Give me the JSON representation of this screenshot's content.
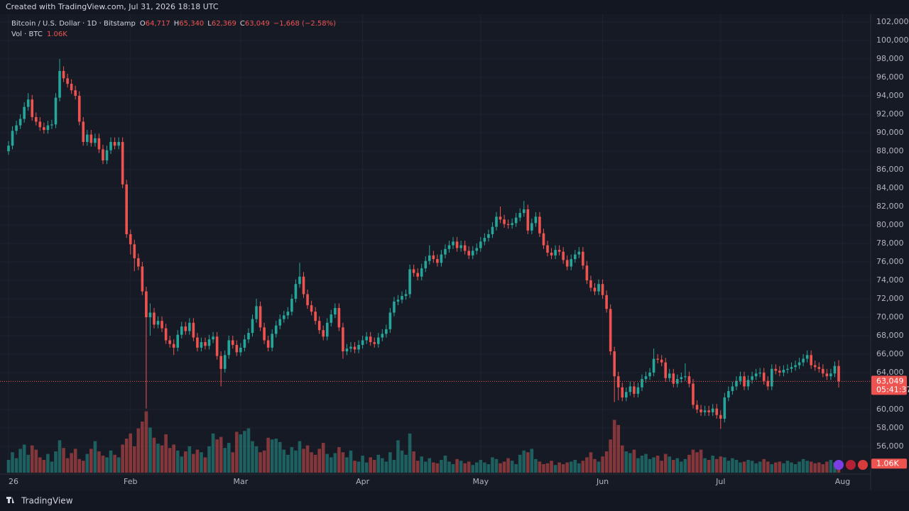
{
  "header": {
    "created": "Created with TradingView.com, Jul 31, 2026 18:18 UTC"
  },
  "footer": {
    "brand": "TradingView"
  },
  "legend": {
    "symbol": "Bitcoin / U.S. Dollar · 1D · Bitstamp",
    "ohlc": [
      {
        "key": "O",
        "value": "64,717"
      },
      {
        "key": "H",
        "value": "65,340"
      },
      {
        "key": "L",
        "value": "62,369"
      },
      {
        "key": "C",
        "value": "63,049"
      }
    ],
    "change": "−1,668 (−2.58%)",
    "volume_title": "Vol · BTC",
    "volume_value": "1.06K",
    "countdown": "05:41:37"
  },
  "chart_data": {
    "type": "candlestick",
    "up_color": "#26a69a",
    "down_color": "#ef5350",
    "grid": true,
    "xlim": [
      0,
      219
    ],
    "xticks": [
      {
        "value": 0,
        "label": "26"
      },
      {
        "value": 31,
        "label": "Feb"
      },
      {
        "value": 59,
        "label": "Mar"
      },
      {
        "value": 90,
        "label": "Apr"
      },
      {
        "value": 120,
        "label": "May"
      },
      {
        "value": 151,
        "label": "Jun"
      },
      {
        "value": 181,
        "label": "Jul"
      },
      {
        "value": 212,
        "label": "Aug"
      }
    ],
    "ylim": [
      53150,
      102850
    ],
    "yticks": [
      {
        "value": 102000,
        "label": "102,000"
      },
      {
        "value": 100000,
        "label": "100,000"
      },
      {
        "value": 98000,
        "label": "98,000"
      },
      {
        "value": 96000,
        "label": "96,000"
      },
      {
        "value": 94000,
        "label": "94,000"
      },
      {
        "value": 92000,
        "label": "92,000"
      },
      {
        "value": 90000,
        "label": "90,000"
      },
      {
        "value": 88000,
        "label": "88,000"
      },
      {
        "value": 86000,
        "label": "86,000"
      },
      {
        "value": 84000,
        "label": "84,000"
      },
      {
        "value": 82000,
        "label": "82,000"
      },
      {
        "value": 80000,
        "label": "80,000"
      },
      {
        "value": 78000,
        "label": "78,000"
      },
      {
        "value": 76000,
        "label": "76,000"
      },
      {
        "value": 74000,
        "label": "74,000"
      },
      {
        "value": 72000,
        "label": "72,000"
      },
      {
        "value": 70000,
        "label": "70,000"
      },
      {
        "value": 68000,
        "label": "68,000"
      },
      {
        "value": 66000,
        "label": "66,000"
      },
      {
        "value": 64000,
        "label": "64,000"
      },
      {
        "value": 60000,
        "label": "60,000"
      },
      {
        "value": 58000,
        "label": "58,000"
      },
      {
        "value": 56000,
        "label": "56,000"
      }
    ],
    "vlim": [
      0,
      12000
    ],
    "open": [
      88000,
      88600,
      90200,
      90800,
      91500,
      92800,
      93600,
      91700,
      91200,
      90600,
      90300,
      90800,
      90900,
      93800,
      96700,
      95900,
      95300,
      94600,
      94000,
      91200,
      89000,
      89800,
      88900,
      89400,
      88200,
      87000,
      88100,
      89000,
      88600,
      89000,
      84400,
      79000,
      77900,
      76400,
      75500,
      72800,
      70000,
      70500,
      69200,
      69600,
      68800,
      67500,
      67100,
      66700,
      68100,
      69000,
      68500,
      69400,
      67800,
      66700,
      67300,
      66900,
      67600,
      67900,
      65800,
      64400,
      65900,
      67500,
      67000,
      66200,
      66700,
      67600,
      68300,
      69800,
      71200,
      68900,
      67500,
      66700,
      68200,
      69100,
      69800,
      70200,
      70600,
      72000,
      73600,
      74400,
      72500,
      71300,
      70600,
      69600,
      68600,
      67900,
      69400,
      70300,
      71000,
      68900,
      66300,
      66600,
      66800,
      66500,
      67000,
      67500,
      67900,
      67300,
      67100,
      67800,
      68200,
      68700,
      70500,
      71700,
      71900,
      72300,
      72500,
      75200,
      74800,
      74400,
      75300,
      76100,
      76700,
      76300,
      75900,
      76800,
      77400,
      77800,
      78200,
      77500,
      77800,
      77200,
      76700,
      77200,
      77500,
      78200,
      78600,
      79000,
      79800,
      80900,
      80600,
      80100,
      80000,
      80200,
      80800,
      81300,
      81700,
      79400,
      80200,
      80900,
      79100,
      77800,
      77000,
      76700,
      77300,
      77100,
      76200,
      75500,
      76300,
      76800,
      77100,
      75600,
      74000,
      73200,
      72800,
      73600,
      72400,
      70900,
      66300,
      63600,
      62400,
      61300,
      61900,
      62500,
      61700,
      62400,
      63300,
      63600,
      64000,
      65500,
      65400,
      65100,
      63400,
      63900,
      62800,
      63300,
      63500,
      63600,
      62800,
      60500,
      60000,
      59700,
      59900,
      59700,
      60100,
      59400,
      59000,
      61300,
      62000,
      62500,
      63100,
      63600,
      62500,
      63200,
      63600,
      63900,
      64000,
      63100,
      62500,
      64400,
      64200,
      64000,
      64300,
      64400,
      64600,
      64800,
      65100,
      65500,
      65900,
      64800,
      64600,
      64400,
      63900,
      63600,
      63900,
      64717
    ],
    "high": [
      89100,
      90700,
      91300,
      92000,
      93300,
      94300,
      94100,
      92200,
      91700,
      91100,
      91300,
      91400,
      94300,
      98000,
      97200,
      96400,
      95800,
      95100,
      94500,
      91700,
      90300,
      90300,
      89900,
      89900,
      88700,
      88600,
      89500,
      89500,
      89500,
      89500,
      84900,
      79500,
      78400,
      76900,
      76000,
      73300,
      71500,
      71000,
      70100,
      70100,
      69300,
      68000,
      67600,
      68600,
      69500,
      69500,
      69900,
      69900,
      68300,
      67800,
      67800,
      68100,
      68400,
      68400,
      66300,
      66400,
      68000,
      68000,
      67500,
      67200,
      68100,
      68800,
      70300,
      72000,
      71700,
      69400,
      68000,
      68700,
      69600,
      70300,
      70700,
      71100,
      72500,
      74100,
      75900,
      74900,
      73000,
      71800,
      71100,
      70100,
      69100,
      69900,
      70800,
      71500,
      71500,
      69400,
      67100,
      67300,
      67300,
      67500,
      68000,
      68400,
      68400,
      67800,
      68300,
      68700,
      69200,
      71000,
      72200,
      72400,
      72800,
      73000,
      75700,
      75700,
      75300,
      75800,
      76600,
      77800,
      77200,
      76800,
      77300,
      77900,
      78300,
      78700,
      78700,
      78300,
      78300,
      77700,
      77700,
      78000,
      78700,
      79100,
      79500,
      80300,
      81400,
      82000,
      81100,
      80600,
      80700,
      81300,
      81800,
      82600,
      82200,
      80700,
      81400,
      81400,
      79600,
      78300,
      77500,
      77800,
      77800,
      77600,
      76700,
      76800,
      77300,
      77600,
      77600,
      76100,
      74500,
      73700,
      74100,
      74100,
      72900,
      71400,
      66800,
      64100,
      62900,
      62400,
      63000,
      63000,
      62900,
      63800,
      64100,
      64500,
      66600,
      66000,
      65900,
      65600,
      64400,
      64400,
      63800,
      64000,
      65000,
      64100,
      63300,
      61000,
      60500,
      60400,
      60400,
      60600,
      60600,
      59900,
      61800,
      62500,
      63000,
      63600,
      64100,
      64100,
      63700,
      64100,
      64400,
      64500,
      64500,
      63600,
      64900,
      64900,
      64700,
      64800,
      64900,
      65100,
      65300,
      65600,
      66000,
      66400,
      66400,
      65300,
      65100,
      64900,
      64400,
      64400,
      65200,
      65340
    ],
    "low": [
      87600,
      88200,
      89800,
      90400,
      91100,
      92400,
      91300,
      90800,
      90200,
      89900,
      89900,
      90400,
      90500,
      93400,
      95500,
      94900,
      94200,
      93600,
      90800,
      88600,
      88600,
      88500,
      88500,
      87800,
      86600,
      86600,
      87700,
      88200,
      88200,
      84000,
      78600,
      76800,
      75000,
      75100,
      72400,
      60100,
      68000,
      68800,
      68800,
      68400,
      67100,
      66700,
      65900,
      66300,
      67700,
      68100,
      68100,
      67400,
      66300,
      66300,
      66500,
      66500,
      67200,
      65400,
      62500,
      64000,
      65500,
      66600,
      65800,
      65800,
      66300,
      67200,
      67900,
      69400,
      68500,
      67100,
      66300,
      66300,
      67800,
      68700,
      69400,
      69800,
      70200,
      71600,
      73200,
      72100,
      70900,
      70200,
      69200,
      68200,
      67500,
      67500,
      69000,
      69900,
      68500,
      65500,
      65900,
      66200,
      66100,
      66100,
      66600,
      67100,
      66900,
      66700,
      66700,
      67400,
      67800,
      68300,
      70100,
      71300,
      71500,
      71900,
      72100,
      74400,
      74000,
      74000,
      74900,
      75700,
      75900,
      75500,
      75500,
      76400,
      77000,
      77400,
      77100,
      77100,
      76800,
      76300,
      76300,
      76800,
      77100,
      77800,
      78200,
      78600,
      79400,
      80200,
      79700,
      79600,
      79600,
      79800,
      80400,
      80900,
      79000,
      79000,
      79800,
      78700,
      77400,
      76600,
      76300,
      76300,
      76700,
      75800,
      75100,
      75100,
      75900,
      76400,
      75200,
      73600,
      72800,
      72400,
      72400,
      72000,
      70500,
      65900,
      60800,
      61000,
      60900,
      60900,
      61500,
      61300,
      61300,
      62000,
      62900,
      63200,
      63600,
      65000,
      64700,
      63000,
      63000,
      62400,
      62400,
      62900,
      63100,
      62400,
      60100,
      59600,
      59300,
      59300,
      59300,
      59300,
      59000,
      57900,
      58600,
      60900,
      61600,
      62100,
      62700,
      62100,
      62100,
      62800,
      63200,
      63500,
      62700,
      62100,
      62100,
      63800,
      63600,
      63600,
      63900,
      64000,
      64200,
      64400,
      64700,
      65100,
      64400,
      64200,
      64000,
      63500,
      63200,
      63200,
      63500,
      62369
    ],
    "close": [
      88600,
      90200,
      90800,
      91500,
      92800,
      93600,
      91700,
      91200,
      90600,
      90300,
      90800,
      90900,
      93800,
      96700,
      95900,
      95300,
      94600,
      94000,
      91200,
      89000,
      89800,
      88900,
      89400,
      88200,
      87000,
      88100,
      89000,
      88600,
      89000,
      84400,
      79000,
      77900,
      76400,
      75500,
      72800,
      70000,
      70500,
      69200,
      69600,
      68800,
      67500,
      67100,
      66700,
      68100,
      69000,
      68500,
      69400,
      67800,
      66700,
      67300,
      66900,
      67600,
      67900,
      65800,
      64400,
      65900,
      67500,
      67000,
      66200,
      66700,
      67600,
      68300,
      69800,
      71200,
      68900,
      67500,
      66700,
      68200,
      69100,
      69800,
      70200,
      70600,
      72000,
      73600,
      74400,
      72500,
      71300,
      70600,
      69600,
      68600,
      67900,
      69400,
      70300,
      71000,
      68900,
      66300,
      66600,
      66800,
      66500,
      67000,
      67500,
      67900,
      67300,
      67100,
      67800,
      68200,
      68700,
      70500,
      71700,
      71900,
      72300,
      72500,
      75200,
      74800,
      74400,
      75300,
      76100,
      76700,
      76300,
      75900,
      76800,
      77400,
      77800,
      78200,
      77500,
      77800,
      77200,
      76700,
      77200,
      77500,
      78200,
      78600,
      79000,
      79800,
      80900,
      80600,
      80100,
      80000,
      80200,
      80800,
      81300,
      81700,
      79400,
      80200,
      80900,
      79100,
      77800,
      77000,
      76700,
      77300,
      77100,
      76200,
      75500,
      76300,
      76800,
      77100,
      75600,
      74000,
      73200,
      72800,
      73600,
      72400,
      70900,
      66300,
      63600,
      62400,
      61300,
      61900,
      62500,
      61700,
      62400,
      63300,
      63600,
      64000,
      65500,
      65400,
      65100,
      63400,
      63900,
      62800,
      63300,
      63500,
      63600,
      62800,
      60500,
      60000,
      59700,
      59900,
      59700,
      60100,
      59400,
      59000,
      61300,
      62000,
      62500,
      63100,
      63600,
      62500,
      63200,
      63600,
      63900,
      64000,
      63100,
      62500,
      64400,
      64200,
      64000,
      64300,
      64400,
      64600,
      64800,
      65100,
      65500,
      65900,
      64800,
      64600,
      64400,
      63900,
      63600,
      63900,
      64717,
      63049
    ],
    "volume": [
      1500,
      2400,
      1700,
      2800,
      3300,
      2100,
      3200,
      2700,
      1800,
      1500,
      2200,
      1300,
      2500,
      3800,
      2900,
      1700,
      2300,
      2800,
      1600,
      1400,
      2200,
      2800,
      3700,
      2500,
      2000,
      1800,
      2600,
      2100,
      1800,
      3300,
      4000,
      4600,
      3100,
      5200,
      6000,
      7200,
      5300,
      4100,
      3400,
      3200,
      4500,
      2900,
      3300,
      2600,
      1900,
      2500,
      3100,
      2200,
      2700,
      2400,
      1800,
      3100,
      4600,
      3900,
      4200,
      2900,
      3500,
      2400,
      4800,
      4500,
      4900,
      5200,
      3700,
      3100,
      2400,
      2600,
      4100,
      3900,
      4000,
      3600,
      2700,
      2100,
      3000,
      2600,
      3700,
      2800,
      3200,
      2400,
      2100,
      2800,
      3500,
      2200,
      1800,
      2300,
      3000,
      2400,
      1800,
      2600,
      1400,
      1300,
      2000,
      1200,
      1800,
      1500,
      2100,
      1700,
      1300,
      2400,
      1500,
      3800,
      2600,
      2100,
      4600,
      2500,
      1400,
      1900,
      1300,
      1700,
      1200,
      1100,
      1500,
      2000,
      1300,
      1000,
      1600,
      1400,
      1100,
      1300,
      900,
      1200,
      1500,
      1200,
      1000,
      1800,
      1600,
      1100,
      1300,
      1700,
      1400,
      1000,
      2100,
      2600,
      2400,
      2800,
      1600,
      1300,
      1000,
      1100,
      1400,
      900,
      1200,
      1000,
      1200,
      1300,
      1500,
      1100,
      1400,
      1800,
      2400,
      1600,
      1300,
      1900,
      2500,
      3900,
      6200,
      5600,
      3200,
      2500,
      2300,
      2700,
      1700,
      2000,
      2200,
      1600,
      1800,
      2000,
      1400,
      2200,
      1900,
      1500,
      1700,
      1300,
      1600,
      2100,
      2700,
      2400,
      2700,
      1700,
      1500,
      2000,
      1600,
      1900,
      1800,
      1400,
      1700,
      1500,
      1200,
      1300,
      1500,
      1400,
      1100,
      1300,
      1600,
      1300,
      1000,
      1200,
      1300,
      1100,
      1400,
      1200,
      1000,
      1300,
      1600,
      1400,
      1300,
      1100,
      1200,
      1000,
      1300,
      1500,
      1200,
      1060
    ]
  }
}
